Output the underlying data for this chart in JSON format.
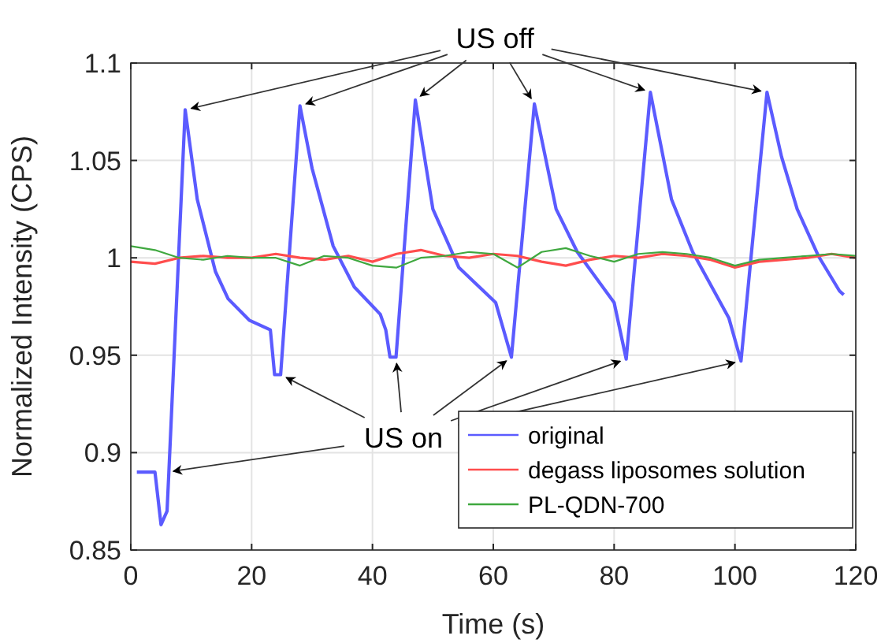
{
  "chart_data": {
    "type": "line",
    "xlabel": "Time (s)",
    "ylabel": "Normalized Intensity (CPS)",
    "xlim": [
      0,
      120
    ],
    "ylim": [
      0.85,
      1.1
    ],
    "xticks": [
      0,
      20,
      40,
      60,
      80,
      100,
      120
    ],
    "yticks": [
      0.85,
      0.9,
      0.95,
      1,
      1.05,
      1.1
    ],
    "grid": true,
    "legend": "bottom right",
    "annotations": [
      {
        "text": "US off",
        "x": 66.8,
        "y": 1.079
      },
      {
        "text": "US on",
        "x": 6,
        "y": 0.89
      }
    ],
    "series": [
      {
        "name": "original",
        "color": "#5b5bff",
        "x": [
          1,
          4,
          5,
          6,
          6.3,
          9,
          11,
          14,
          16.1,
          19.6,
          23.1,
          23.8,
          24.8,
          28,
          30,
          33.5,
          37,
          41.3,
          42.2,
          42.9,
          43.9,
          47.1,
          50,
          54.3,
          60.4,
          63,
          66.8,
          70.4,
          73.9,
          80,
          82,
          86,
          89.5,
          93,
          99,
          101,
          105.3,
          107.7,
          110.3,
          113.8,
          117.3,
          118
        ],
        "values": [
          0.89,
          0.89,
          0.863,
          0.87,
          0.89,
          1.076,
          1.03,
          0.993,
          0.979,
          0.968,
          0.963,
          0.94,
          0.94,
          1.078,
          1.046,
          1.006,
          0.985,
          0.971,
          0.963,
          0.949,
          0.949,
          1.081,
          1.025,
          0.995,
          0.977,
          0.949,
          1.079,
          1.025,
          1.003,
          0.977,
          0.948,
          1.085,
          1.03,
          1.003,
          0.969,
          0.947,
          1.085,
          1.052,
          1.025,
          1.001,
          0.983,
          0.981
        ]
      },
      {
        "name": "degass liposomes solution",
        "color": "#ff4d4d",
        "x": [
          0,
          4,
          8,
          12,
          16,
          20,
          24,
          28,
          32,
          36,
          40,
          44,
          48,
          52,
          56,
          60,
          64,
          68,
          72,
          76,
          80,
          84,
          88,
          92,
          96,
          100,
          104,
          108,
          112,
          116,
          120
        ],
        "values": [
          0.998,
          0.997,
          1,
          1.001,
          1,
          1,
          1.002,
          1,
          0.999,
          1.001,
          0.998,
          1.002,
          1.004,
          1.001,
          1,
          1.002,
          1.001,
          0.998,
          0.996,
          0.999,
          1.001,
          1,
          1.002,
          1.001,
          0.999,
          0.995,
          0.998,
          0.999,
          1,
          1.002,
          1
        ]
      },
      {
        "name": "PL-QDN-700",
        "color": "#3fa83f",
        "x": [
          0,
          4,
          8,
          12,
          16,
          20,
          24,
          28,
          32,
          36,
          40,
          44,
          48,
          52,
          56,
          60,
          64,
          68,
          72,
          76,
          80,
          84,
          88,
          92,
          96,
          100,
          104,
          108,
          112,
          116,
          120
        ],
        "values": [
          1.006,
          1.004,
          1,
          0.999,
          1.001,
          1,
          1,
          0.996,
          1.001,
          1,
          0.996,
          0.995,
          1,
          1.001,
          1.003,
          1.002,
          0.995,
          1.003,
          1.005,
          1.001,
          0.998,
          1.002,
          1.003,
          1.002,
          1,
          0.996,
          0.999,
          1,
          1.001,
          1.002,
          1.001
        ]
      }
    ]
  }
}
